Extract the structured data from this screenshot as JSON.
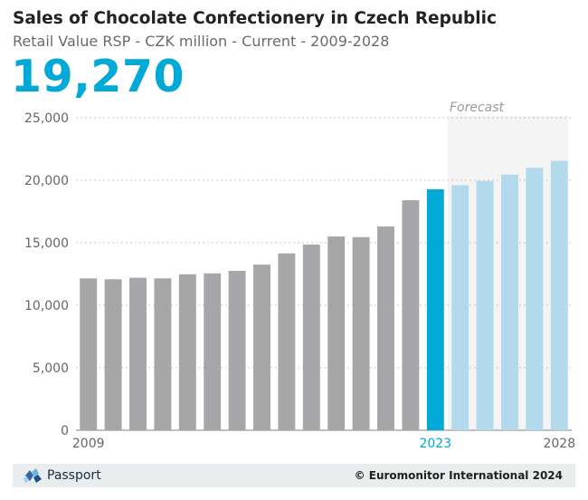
{
  "header": {
    "title": "Sales of Chocolate Confectionery in Czech Republic",
    "subtitle": "Retail Value RSP - CZK million - Current - 2009-2028",
    "headline_value": "19,270"
  },
  "chart_data": {
    "type": "bar",
    "categories": [
      "2009",
      "2010",
      "2011",
      "2012",
      "2013",
      "2014",
      "2015",
      "2016",
      "2017",
      "2018",
      "2019",
      "2020",
      "2021",
      "2022",
      "2023",
      "2024",
      "2025",
      "2026",
      "2027",
      "2028"
    ],
    "values": [
      12150,
      12080,
      12200,
      12150,
      12480,
      12550,
      12750,
      13250,
      14150,
      14850,
      15500,
      15450,
      16300,
      18400,
      19270,
      19600,
      19950,
      20450,
      21000,
      21550
    ],
    "ylim": [
      0,
      25000
    ],
    "yticks": [
      0,
      5000,
      10000,
      15000,
      20000,
      25000
    ],
    "ytick_labels": [
      "0",
      "5,000",
      "10,000",
      "15,000",
      "20,000",
      "25,000"
    ],
    "x_tick_labels": [
      {
        "category": "2009",
        "label": "2009"
      },
      {
        "category": "2023",
        "label": "2023"
      },
      {
        "category": "2028",
        "label": "2028"
      }
    ],
    "current_year": "2023",
    "forecast_start": "2024",
    "forecast_label": "Forecast",
    "grid": true,
    "colors": {
      "historic": "#a6a6a8",
      "current": "#00a9d6",
      "forecast": "#b2d9ec",
      "forecast_band": "#f4f4f4",
      "gridline": "#c8c8c8",
      "tick_text": "#666666",
      "current_tick_text": "#00a9d6"
    }
  },
  "footer": {
    "brand": "Passport",
    "copyright": "© Euromonitor International 2024"
  }
}
